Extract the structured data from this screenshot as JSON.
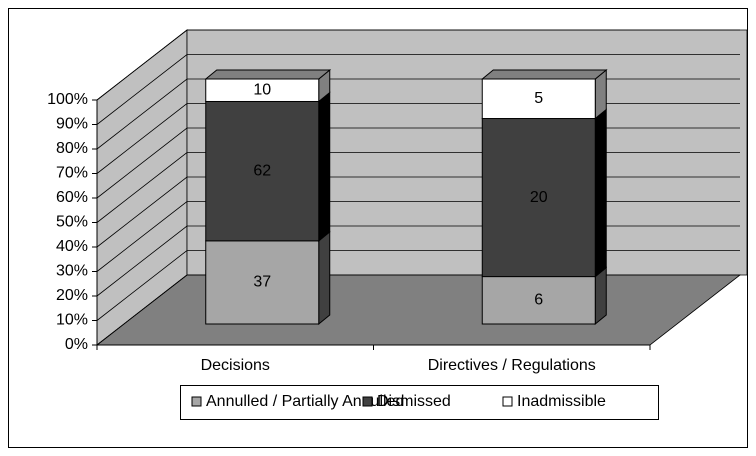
{
  "chart_data": {
    "type": "bar",
    "stacking": "percent",
    "categories": [
      "Decisions",
      "Directives / Regulations"
    ],
    "series": [
      {
        "name": "Annulled / Partially Annulled",
        "color": "#a6a6a6",
        "side_color": "#404040",
        "values": [
          37,
          6
        ]
      },
      {
        "name": "Dismissed",
        "color": "#404040",
        "side_color": "#000000",
        "values": [
          62,
          20
        ]
      },
      {
        "name": "Inadmissible",
        "color": "#ffffff",
        "side_color": "#808080",
        "values": [
          10,
          5
        ]
      }
    ],
    "ylim": [
      0,
      100
    ],
    "yticks": [
      {
        "value": 0,
        "label": "0%"
      },
      {
        "value": 10,
        "label": "10%"
      },
      {
        "value": 20,
        "label": "20%"
      },
      {
        "value": 30,
        "label": "30%"
      },
      {
        "value": 40,
        "label": "40%"
      },
      {
        "value": 50,
        "label": "50%"
      },
      {
        "value": 60,
        "label": "60%"
      },
      {
        "value": 70,
        "label": "70%"
      },
      {
        "value": 80,
        "label": "80%"
      },
      {
        "value": 90,
        "label": "90%"
      },
      {
        "value": 100,
        "label": "100%"
      }
    ],
    "grid": true,
    "legend": "bottom"
  }
}
